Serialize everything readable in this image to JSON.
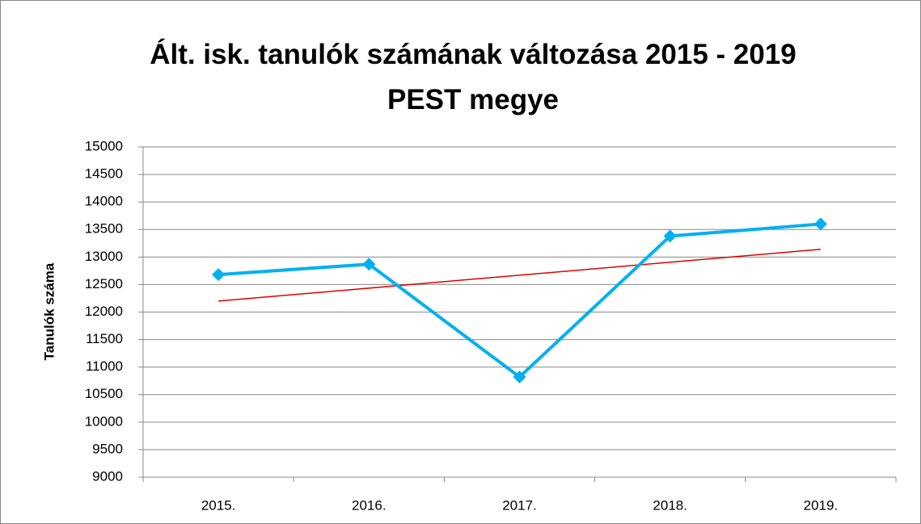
{
  "chart_data": {
    "type": "line",
    "title": "Ált. isk. tanulók számának változása 2015 - 2019 PEST megye",
    "y_label": "Tanulók száma",
    "categories": [
      "2015.",
      "2016.",
      "2017.",
      "2018.",
      "2019."
    ],
    "series": [
      {
        "color": "#00b0f0",
        "values": [
          12680,
          12870,
          10820,
          13380,
          13600
        ]
      }
    ],
    "trendline": {
      "type": "linear",
      "color": "#e00000"
    },
    "ylim": [
      9000,
      15000
    ],
    "yticks": [
      9000,
      9500,
      10000,
      10500,
      11000,
      11500,
      12000,
      12500,
      13000,
      13500,
      14000,
      14500,
      15000
    ],
    "grid": true
  }
}
